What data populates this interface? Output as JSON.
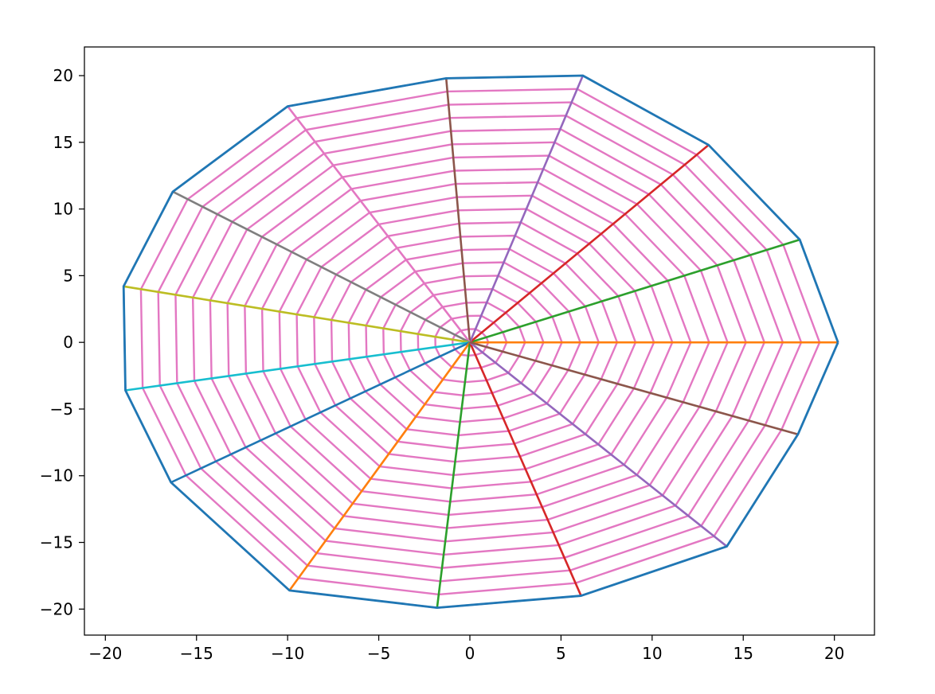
{
  "chart_data": {
    "type": "line",
    "title": "",
    "xlabel": "",
    "ylabel": "",
    "xlim": [
      -21.15,
      22.2
    ],
    "ylim": [
      -21.95,
      22.15
    ],
    "grid": false,
    "legend": "none",
    "x_ticks": [
      {
        "value": -20,
        "label": "−20"
      },
      {
        "value": -15,
        "label": "−15"
      },
      {
        "value": -10,
        "label": "−10"
      },
      {
        "value": -5,
        "label": "−5"
      },
      {
        "value": 0,
        "label": "0"
      },
      {
        "value": 5,
        "label": "5"
      },
      {
        "value": 10,
        "label": "10"
      },
      {
        "value": 15,
        "label": "15"
      },
      {
        "value": 20,
        "label": "20"
      }
    ],
    "y_ticks": [
      {
        "value": -20,
        "label": "−20"
      },
      {
        "value": -15,
        "label": "−15"
      },
      {
        "value": -10,
        "label": "−10"
      },
      {
        "value": -5,
        "label": "−5"
      },
      {
        "value": 0,
        "label": "0"
      },
      {
        "value": 5,
        "label": "5"
      },
      {
        "value": 10,
        "label": "10"
      },
      {
        "value": 15,
        "label": "15"
      },
      {
        "value": 20,
        "label": "20"
      }
    ],
    "rim_points": [
      [
        20.2,
        0.0
      ],
      [
        18.1,
        7.7
      ],
      [
        13.1,
        14.8
      ],
      [
        6.2,
        20.0
      ],
      [
        -1.3,
        19.8
      ],
      [
        -10.0,
        17.7
      ],
      [
        -16.3,
        11.3
      ],
      [
        -19.0,
        4.2
      ],
      [
        -18.9,
        -3.6
      ],
      [
        -16.4,
        -10.5
      ],
      [
        -9.9,
        -18.6
      ],
      [
        -1.8,
        -19.9
      ],
      [
        6.1,
        -19.0
      ],
      [
        14.1,
        -15.3
      ],
      [
        18.0,
        -6.9
      ]
    ],
    "spoke_colors": [
      "#ff7f0e",
      "#2ca02c",
      "#d62728",
      "#9467bd",
      "#8c564b",
      "#e377c2",
      "#7f7f7f",
      "#bcbd22",
      "#17becf",
      "#1f77b4",
      "#ff7f0e",
      "#2ca02c",
      "#d62728",
      "#9467bd",
      "#8c564b"
    ],
    "rim_color": "#1f77b4",
    "ring_color": "#e377c2",
    "ring_count": 20,
    "ring_step": 0.05
  }
}
